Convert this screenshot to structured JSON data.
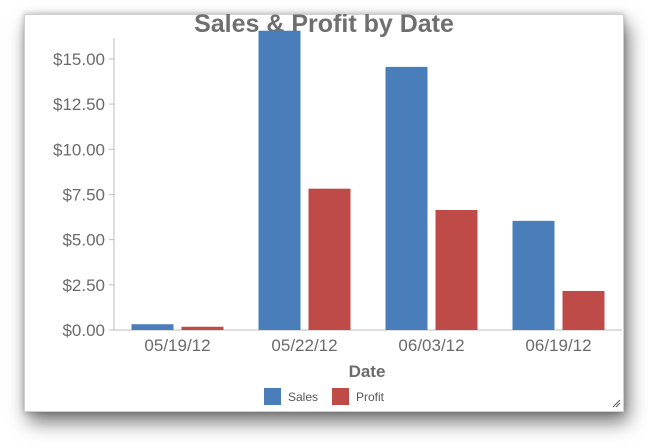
{
  "chart_data": {
    "type": "bar",
    "title": "Sales & Profit by Date",
    "xlabel": "Date",
    "ylabel": "",
    "categories": [
      "05/19/12",
      "05/22/12",
      "06/03/12",
      "06/19/12"
    ],
    "series": [
      {
        "name": "Sales",
        "values": [
          0.32,
          16.56,
          14.56,
          6.04
        ],
        "color": "#4a7ebb"
      },
      {
        "name": "Profit",
        "values": [
          0.18,
          7.82,
          6.64,
          2.16
        ],
        "color": "#be4b48"
      }
    ],
    "ylim": [
      0,
      16.6
    ],
    "yticks": [
      "$0.00",
      "$2.50",
      "$5.00",
      "$7.50",
      "$10.00",
      "$12.50",
      "$15.00"
    ],
    "ytick_values": [
      0,
      2.5,
      5,
      7.5,
      10,
      12.5,
      15
    ],
    "grid": false,
    "legend_position": "bottom"
  }
}
